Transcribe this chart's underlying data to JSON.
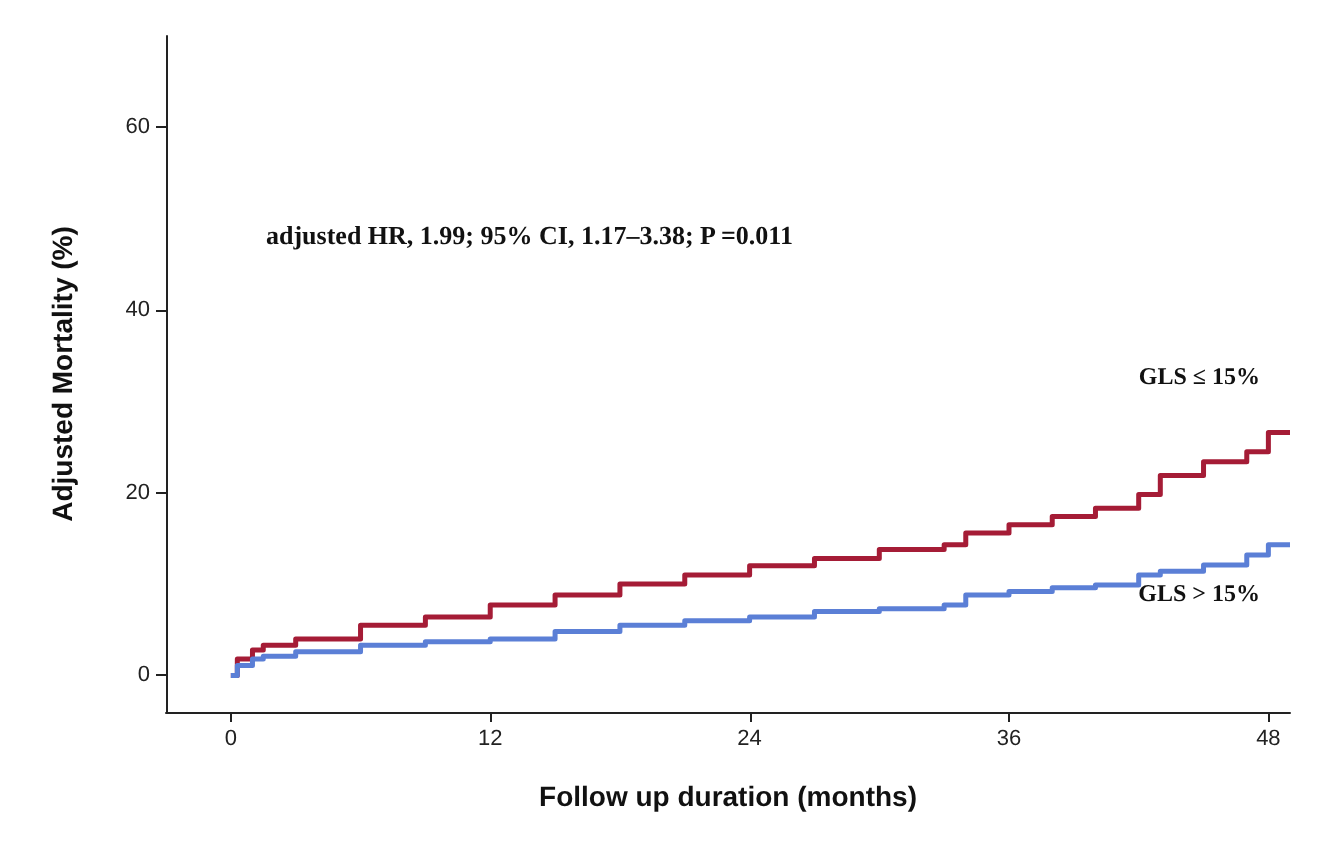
{
  "chart_data": {
    "type": "step",
    "xlabel": "Follow up duration (months)",
    "ylabel": "Adjusted Mortality (%)",
    "annotations": [
      "adjusted HR, 1.99; 95% CI, 1.17–3.38; P =0.011"
    ],
    "x": [
      0,
      0.3,
      1,
      1.5,
      3,
      6,
      9,
      12,
      15,
      18,
      21,
      24,
      27,
      30,
      33,
      34,
      36,
      38,
      40,
      42,
      43,
      45,
      47,
      48,
      49
    ],
    "series": [
      {
        "name": "GLS ≤ 15%",
        "color": "#a51c36",
        "values": [
          0,
          1.8,
          2.8,
          3.3,
          4,
          5.5,
          6.4,
          7.7,
          8.8,
          10,
          11,
          12,
          12.8,
          13.8,
          14.3,
          15.6,
          16.5,
          17.4,
          18.3,
          19.8,
          21.9,
          23.4,
          24.5,
          26.6,
          26.6
        ]
      },
      {
        "name": "GLS > 15%",
        "color": "#5b7fd6",
        "values": [
          0,
          1.1,
          1.8,
          2.1,
          2.6,
          3.3,
          3.7,
          4,
          4.8,
          5.5,
          6,
          6.4,
          7,
          7.3,
          7.7,
          8.8,
          9.2,
          9.6,
          9.9,
          11,
          11.4,
          12.1,
          13.2,
          14.3,
          14.3
        ]
      }
    ],
    "xlim": [
      -3,
      49
    ],
    "xticks": [
      0,
      12,
      24,
      36,
      48
    ],
    "ylim": [
      -4,
      70
    ],
    "yticks": [
      0,
      20,
      40,
      60
    ],
    "grid": false,
    "legend": false,
    "marker": "none",
    "line_style": "solid"
  }
}
